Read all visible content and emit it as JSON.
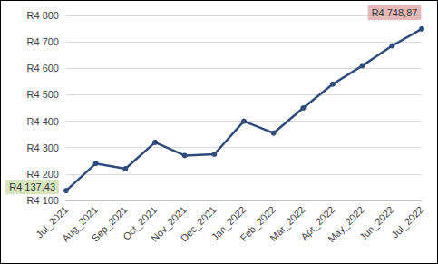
{
  "chart_data": {
    "type": "line",
    "categories": [
      "Jul_2021",
      "Aug_2021",
      "Sep_2021",
      "Oct_2021",
      "Nov_2021",
      "Dec_2021",
      "Jan_2022",
      "Feb_2022",
      "Mar_2022",
      "Apr_2022",
      "May_2022",
      "Jun_2022",
      "Jul_2022"
    ],
    "values": [
      4137.43,
      4240,
      4220,
      4320,
      4270,
      4275,
      4400,
      4355,
      4450,
      4540,
      4610,
      4685,
      4748.87
    ],
    "value_labels": [
      "R4 137,43",
      null,
      null,
      null,
      null,
      null,
      null,
      null,
      null,
      null,
      null,
      null,
      "R4 748,87"
    ],
    "data_labels": true,
    "color": "#2f4b7c",
    "marker": "circle",
    "line_style": "solid",
    "ylim": [
      4100,
      4800
    ],
    "yticks": [
      {
        "value": 4100,
        "label": "R4 100"
      },
      {
        "value": 4200,
        "label": "R4 200"
      },
      {
        "value": 4300,
        "label": "R4 300"
      },
      {
        "value": 4400,
        "label": "R4 400"
      },
      {
        "value": 4500,
        "label": "R4 500"
      },
      {
        "value": 4600,
        "label": "R4 600"
      },
      {
        "value": 4700,
        "label": "R4 700"
      },
      {
        "value": 4800,
        "label": "R4 800"
      }
    ],
    "grid": true
  }
}
